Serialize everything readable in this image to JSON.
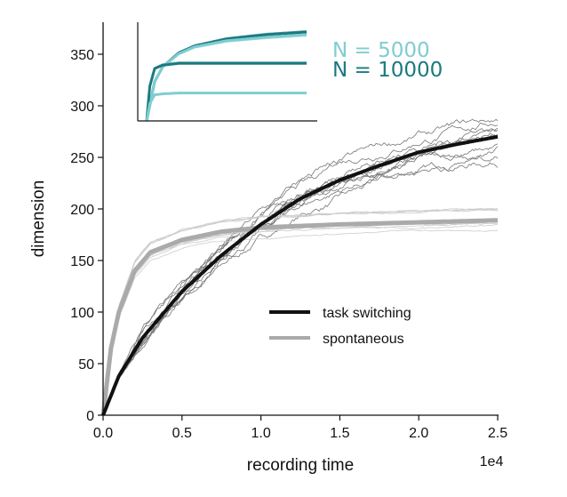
{
  "chart_data": {
    "type": "line",
    "xlabel": "recording time",
    "ylabel": "dimension",
    "x_multiplier_label": "1e4",
    "xlim": [
      0,
      2.5
    ],
    "ylim": [
      0,
      380
    ],
    "xticks": [
      "0.0",
      "0.5",
      "1.0",
      "1.5",
      "2.0",
      "2.5"
    ],
    "xtick_values": [
      0,
      0.5,
      1.0,
      1.5,
      2.0,
      2.5
    ],
    "yticks": [
      "0",
      "50",
      "100",
      "150",
      "200",
      "250",
      "300",
      "350"
    ],
    "ytick_values": [
      0,
      50,
      100,
      150,
      200,
      250,
      300,
      350
    ],
    "grid": false,
    "legend_position": "center-right",
    "series": [
      {
        "name": "task switching",
        "color": "#111111",
        "x": [
          0,
          0.1,
          0.25,
          0.5,
          0.75,
          1.0,
          1.25,
          1.5,
          1.75,
          2.0,
          2.25,
          2.5
        ],
        "values": [
          0,
          38,
          75,
          120,
          155,
          185,
          210,
          228,
          242,
          255,
          263,
          270
        ]
      },
      {
        "name": "spontaneous",
        "color": "#aaaaaa",
        "x": [
          0,
          0.05,
          0.1,
          0.2,
          0.3,
          0.5,
          0.75,
          1.0,
          1.5,
          2.0,
          2.5
        ],
        "values": [
          0,
          65,
          100,
          140,
          158,
          170,
          178,
          182,
          185,
          187,
          189
        ]
      }
    ],
    "inset": {
      "legend": [
        "N = 5000",
        "N = 10000"
      ],
      "colors": {
        "N5000": "#7fcdd0",
        "N10000": "#1a7a80"
      },
      "series": [
        {
          "name": "N=10000 task switching",
          "color": "#1a7a80",
          "x": [
            0,
            0.05,
            0.1,
            0.2,
            0.3,
            0.5,
            0.75,
            1.0
          ],
          "values": [
            0,
            0.45,
            0.62,
            0.78,
            0.86,
            0.94,
            0.99,
            1.02
          ]
        },
        {
          "name": "N=5000 task switching",
          "color": "#7fcdd0",
          "x": [
            0,
            0.05,
            0.1,
            0.2,
            0.3,
            0.5,
            0.75,
            1.0
          ],
          "values": [
            0,
            0.45,
            0.62,
            0.77,
            0.85,
            0.92,
            0.96,
            0.99
          ]
        },
        {
          "name": "N=10000 spontaneous",
          "color": "#1a7a80",
          "x": [
            0,
            0.02,
            0.05,
            0.1,
            0.2,
            0.5,
            1.0
          ],
          "values": [
            0,
            0.4,
            0.6,
            0.64,
            0.66,
            0.66,
            0.66
          ]
        },
        {
          "name": "N=5000 spontaneous",
          "color": "#7fcdd0",
          "x": [
            0,
            0.02,
            0.05,
            0.1,
            0.2,
            0.5,
            1.0
          ],
          "values": [
            0,
            0.2,
            0.3,
            0.31,
            0.32,
            0.32,
            0.32
          ]
        }
      ]
    }
  }
}
